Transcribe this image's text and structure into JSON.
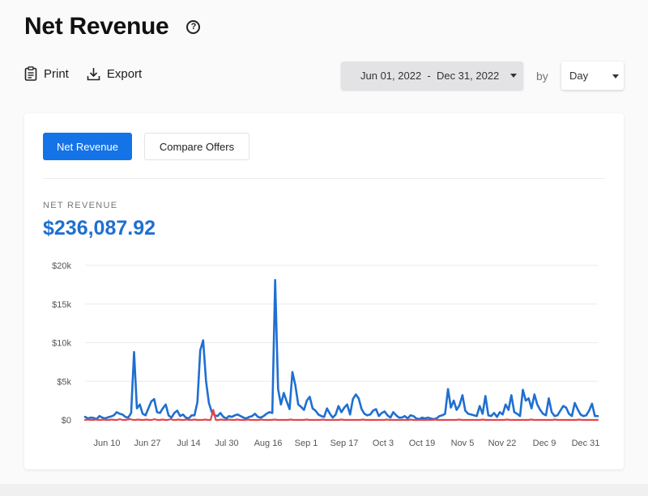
{
  "header": {
    "title": "Net Revenue",
    "help_icon": "?"
  },
  "toolbar": {
    "print_label": "Print",
    "export_label": "Export"
  },
  "filters": {
    "date_range": "Jun 01, 2022  -  Dec 31, 2022",
    "by_label": "by",
    "granularity": "Day"
  },
  "tabs": [
    {
      "label": "Net Revenue",
      "active": true
    },
    {
      "label": "Compare Offers",
      "active": false
    }
  ],
  "metric": {
    "label": "NET REVENUE",
    "value": "$236,087.92"
  },
  "colors": {
    "accent": "#1473e6",
    "series_primary": "#1f6fd0",
    "series_secondary": "#e0474c"
  },
  "chart_data": {
    "type": "line",
    "title": "",
    "xlabel": "",
    "ylabel": "",
    "ylim": [
      0,
      20000
    ],
    "grid": true,
    "y_ticks": [
      "$0",
      "$5k",
      "$10k",
      "$15k",
      "$20k"
    ],
    "x_ticks": [
      "Jun 10",
      "Jun 27",
      "Jul 14",
      "Jul 30",
      "Aug 16",
      "Sep 1",
      "Sep 17",
      "Oct 3",
      "Oct 19",
      "Nov 5",
      "Nov 22",
      "Dec 9",
      "Dec 31"
    ],
    "series": [
      {
        "color": "#1f6fd0",
        "values": [
          400,
          200,
          300,
          250,
          100,
          500,
          300,
          200,
          350,
          450,
          600,
          1000,
          800,
          700,
          400,
          300,
          900,
          8800,
          1500,
          2000,
          800,
          600,
          1500,
          2400,
          2700,
          1000,
          900,
          1500,
          2000,
          600,
          300,
          900,
          1200,
          500,
          700,
          300,
          200,
          600,
          600,
          2300,
          9000,
          10300,
          5000,
          2200,
          1000,
          600,
          500,
          900,
          400,
          200,
          500,
          400,
          600,
          700,
          500,
          300,
          200,
          400,
          500,
          800,
          400,
          300,
          500,
          800,
          1000,
          900,
          18100,
          4000,
          2000,
          3500,
          2400,
          1400,
          6200,
          4500,
          2000,
          1700,
          1300,
          2500,
          3000,
          1500,
          1200,
          700,
          500,
          400,
          1500,
          800,
          300,
          700,
          1800,
          1000,
          1600,
          2000,
          700,
          2700,
          3300,
          2800,
          1400,
          800,
          600,
          700,
          1200,
          1400,
          500,
          900,
          1100,
          600,
          300,
          1000,
          600,
          300,
          300,
          500,
          200,
          600,
          500,
          200,
          100,
          300,
          200,
          300,
          200,
          100,
          200,
          500,
          600,
          800,
          4000,
          1600,
          2500,
          1300,
          1900,
          3200,
          1200,
          800,
          700,
          600,
          500,
          1800,
          800,
          3100,
          600,
          500,
          900,
          400,
          1000,
          700,
          2000,
          1300,
          3200,
          1000,
          800,
          500,
          3900,
          2500,
          2800,
          1500,
          3300,
          2000,
          1300,
          800,
          600,
          2800,
          1000,
          500,
          600,
          1200,
          1800,
          1600,
          800,
          500,
          2200,
          1400,
          700,
          500,
          600,
          1200,
          2100,
          500,
          500
        ]
      },
      {
        "color": "#e0474c",
        "values": [
          0,
          50,
          0,
          0,
          50,
          0,
          0,
          50,
          0,
          0,
          50,
          0,
          0,
          100,
          0,
          0,
          50,
          100,
          0,
          0,
          50,
          0,
          0,
          50,
          0,
          0,
          100,
          0,
          0,
          50,
          0,
          0,
          100,
          0,
          0,
          50,
          0,
          0,
          50,
          0,
          0,
          50,
          0,
          0,
          0,
          50,
          0,
          0,
          1300,
          0,
          0,
          50,
          0,
          0,
          50,
          0,
          0,
          50,
          0,
          0,
          0,
          50,
          0,
          0,
          0,
          0,
          50,
          0,
          0,
          0,
          0,
          50,
          0,
          0,
          0,
          0,
          0,
          50,
          0,
          0,
          0,
          0,
          0,
          50,
          0,
          0,
          0,
          0,
          0,
          50,
          0,
          0,
          0,
          0,
          0,
          0,
          50,
          0,
          0,
          0,
          0,
          0,
          0,
          0,
          50,
          0,
          0,
          0,
          0,
          0,
          0,
          0,
          0,
          50,
          0,
          0,
          0,
          0,
          0,
          0,
          0,
          0,
          50,
          0,
          0,
          0,
          0,
          0,
          0,
          0,
          0,
          50,
          0,
          0,
          0,
          0,
          0,
          0,
          0,
          0,
          50,
          0,
          0,
          0,
          0,
          0,
          0,
          0,
          0,
          50,
          0,
          0,
          0,
          0,
          0,
          0,
          0,
          0,
          50,
          0,
          0,
          0,
          0,
          0,
          0,
          0,
          0,
          50,
          0,
          0,
          0,
          0,
          0,
          0,
          0,
          0,
          50,
          0,
          0,
          0,
          0,
          0,
          0,
          0,
          0,
          50,
          0,
          0,
          0,
          0,
          0,
          0,
          0
        ]
      }
    ]
  }
}
